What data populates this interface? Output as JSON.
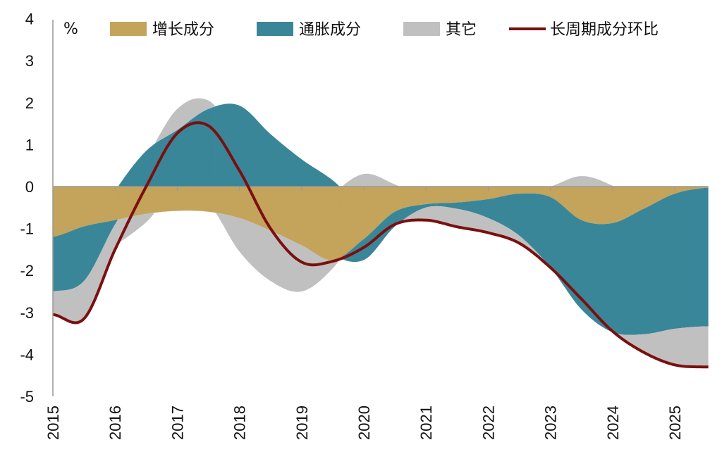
{
  "chart_data": {
    "type": "area",
    "stacked": true,
    "unit_label": "%",
    "xlabel": "",
    "ylabel": "",
    "xlim": [
      2015,
      2025.55
    ],
    "ylim": [
      -5,
      4
    ],
    "y_ticks": [
      "4",
      "3",
      "2",
      "1",
      "0",
      "-1",
      "-2",
      "-3",
      "-4",
      "-5"
    ],
    "x_ticks": [
      "2015",
      "2016",
      "2017",
      "2018",
      "2019",
      "2020",
      "2021",
      "2022",
      "2023",
      "2024",
      "2025"
    ],
    "grid": false,
    "legend_position": "top",
    "x": [
      2015.0,
      2015.5,
      2016.0,
      2016.5,
      2017.0,
      2017.5,
      2018.0,
      2018.5,
      2019.0,
      2019.5,
      2020.0,
      2020.5,
      2021.0,
      2021.5,
      2022.0,
      2022.5,
      2023.0,
      2023.5,
      2024.0,
      2024.5,
      2025.0,
      2025.5
    ],
    "series": [
      {
        "name": "增长成分",
        "kind": "area",
        "color": "#C4A35A",
        "values": [
          -1.2,
          -0.95,
          -0.8,
          -0.65,
          -0.58,
          -0.6,
          -0.75,
          -1.05,
          -1.4,
          -1.75,
          -1.25,
          -0.6,
          -0.42,
          -0.38,
          -0.3,
          -0.17,
          -0.25,
          -0.8,
          -0.87,
          -0.53,
          -0.17,
          -0.03
        ]
      },
      {
        "name": "通胀成分",
        "kind": "area",
        "color": "#3A8699",
        "values": [
          -1.3,
          -1.3,
          -0.1,
          0.85,
          1.35,
          1.85,
          1.93,
          1.25,
          0.65,
          0.15,
          -0.5,
          -0.35,
          -0.08,
          -0.15,
          -0.45,
          -1.0,
          -1.68,
          -2.13,
          -2.6,
          -2.99,
          -3.22,
          -3.3
        ]
      },
      {
        "name": "其它",
        "kind": "area",
        "color": "#C0C0C0",
        "values": [
          -0.55,
          -0.9,
          -0.6,
          -0.2,
          0.5,
          0.2,
          -0.8,
          -1.2,
          -1.1,
          -0.2,
          0.3,
          0.05,
          -0.3,
          -0.43,
          -0.35,
          -0.18,
          0.0,
          0.25,
          0.02,
          -0.43,
          -0.86,
          -0.97
        ]
      },
      {
        "name": "长周期成分环比",
        "kind": "line",
        "color": "#7B0F0F",
        "values": [
          -3.05,
          -3.15,
          -1.5,
          0.0,
          1.27,
          1.45,
          0.38,
          -1.0,
          -1.8,
          -1.78,
          -1.45,
          -0.9,
          -0.8,
          -0.96,
          -1.1,
          -1.35,
          -1.93,
          -2.68,
          -3.45,
          -3.95,
          -4.25,
          -4.3
        ]
      }
    ]
  }
}
